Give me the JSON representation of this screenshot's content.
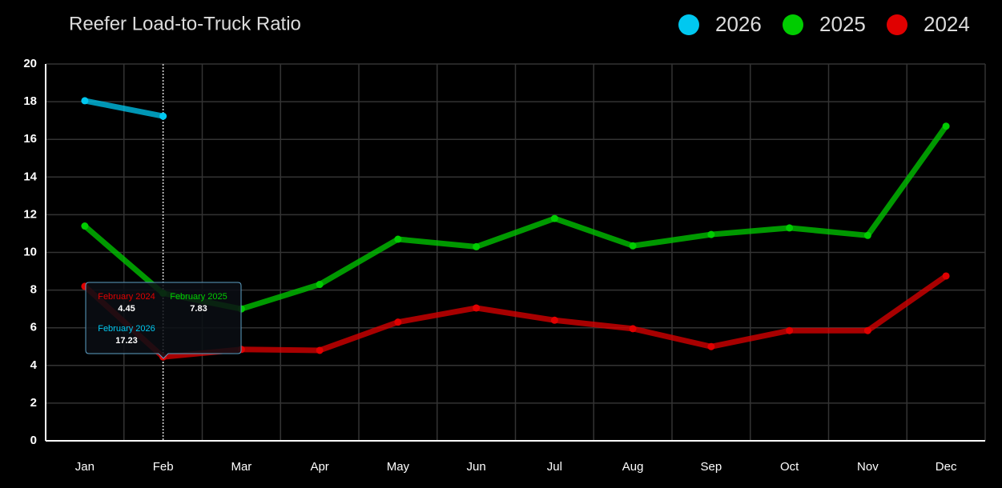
{
  "chart_data": {
    "type": "line",
    "title": "Reefer Load-to-Truck Ratio",
    "categories": [
      "Jan",
      "Feb",
      "Mar",
      "Apr",
      "May",
      "Jun",
      "Jul",
      "Aug",
      "Sep",
      "Oct",
      "Nov",
      "Dec"
    ],
    "series": [
      {
        "name": "2026",
        "color": "#00c8f0",
        "values": [
          18.05,
          17.23,
          null,
          null,
          null,
          null,
          null,
          null,
          null,
          null,
          null,
          null
        ]
      },
      {
        "name": "2025",
        "color": "#00cc00",
        "values": [
          11.4,
          7.83,
          7.0,
          8.3,
          10.7,
          10.3,
          11.8,
          10.35,
          10.95,
          11.3,
          10.9,
          16.7
        ]
      },
      {
        "name": "2024",
        "color": "#e00000",
        "values": [
          8.2,
          4.45,
          4.85,
          4.8,
          6.3,
          7.05,
          6.4,
          5.95,
          5.0,
          5.85,
          5.85,
          8.75
        ]
      }
    ],
    "ylim": [
      0,
      20
    ],
    "yticks": [
      0,
      2,
      4,
      6,
      8,
      10,
      12,
      14,
      16,
      18,
      20
    ],
    "grid": true,
    "legend": "top-right",
    "tooltip": [
      "February 2024",
      "February 2025",
      "February 2026"
    ]
  }
}
